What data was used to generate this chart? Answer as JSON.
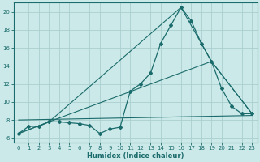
{
  "xlabel": "Humidex (Indice chaleur)",
  "xlim": [
    -0.5,
    23.5
  ],
  "ylim": [
    5.5,
    21.0
  ],
  "yticks": [
    6,
    8,
    10,
    12,
    14,
    16,
    18,
    20
  ],
  "xticks": [
    0,
    1,
    2,
    3,
    4,
    5,
    6,
    7,
    8,
    9,
    10,
    11,
    12,
    13,
    14,
    15,
    16,
    17,
    18,
    19,
    20,
    21,
    22,
    23
  ],
  "bg_color": "#cce9e9",
  "grid_color": "#aacfcf",
  "line_color": "#1a6b6b",
  "line1_x": [
    0,
    1,
    2,
    3,
    4,
    5,
    6,
    7,
    8,
    9,
    10,
    11,
    12,
    13,
    14,
    15,
    16,
    17,
    18,
    19,
    20,
    21,
    22,
    23
  ],
  "line1_y": [
    6.5,
    7.3,
    7.3,
    7.8,
    7.8,
    7.7,
    7.6,
    7.4,
    6.5,
    7.0,
    7.2,
    11.2,
    12.0,
    13.2,
    16.5,
    18.5,
    20.5,
    19.0,
    16.5,
    14.5,
    11.5,
    9.5,
    8.7,
    8.7
  ],
  "line2_x": [
    0,
    3,
    16,
    19,
    23
  ],
  "line2_y": [
    6.5,
    7.8,
    20.5,
    14.5,
    8.7
  ],
  "line3_x": [
    0,
    3,
    19,
    23
  ],
  "line3_y": [
    6.5,
    7.8,
    14.5,
    8.7
  ],
  "line4_x": [
    0,
    23
  ],
  "line4_y": [
    8.0,
    8.5
  ]
}
